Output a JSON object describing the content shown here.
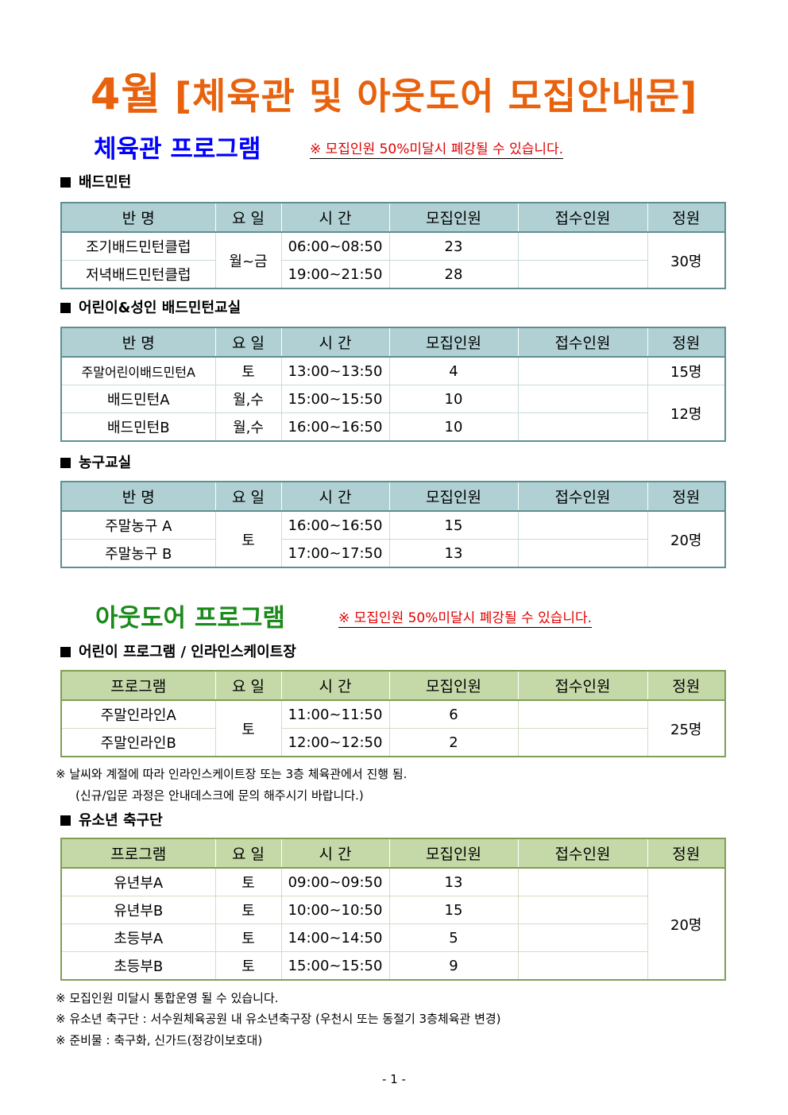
{
  "title": {
    "month": "4월",
    "rest": "[체육관 및 아웃도어 모집안내문]"
  },
  "colors": {
    "title": "#e8620e",
    "gym_heading": "#0000ff",
    "outdoor_heading": "#1a8a1a",
    "notice": "#e00000",
    "gym_table_header": "#b0d0d3",
    "outdoor_table_header": "#c5d9a8"
  },
  "gym": {
    "heading": "체육관 프로그램",
    "notice": "※ 모집인원 50%미달시 폐강될 수 있습니다.",
    "sections": [
      {
        "title": "배드민턴",
        "headers": [
          "반 명",
          "요 일",
          "시 간",
          "모집인원",
          "접수인원",
          "정원"
        ],
        "rows": [
          [
            "조기배드민턴클럽",
            "월~금",
            "06:00~08:50",
            "23",
            "",
            "30명"
          ],
          [
            "저녁배드민턴클럽",
            "",
            "19:00~21:50",
            "28",
            "",
            ""
          ]
        ]
      },
      {
        "title": "어린이&성인 배드민턴교실",
        "headers": [
          "반 명",
          "요 일",
          "시 간",
          "모집인원",
          "접수인원",
          "정원"
        ],
        "rows": [
          [
            "주말어린이배드민턴A",
            "토",
            "13:00~13:50",
            "4",
            "",
            "15명"
          ],
          [
            "배드민턴A",
            "월,수",
            "15:00~15:50",
            "10",
            "",
            "12명"
          ],
          [
            "배드민턴B",
            "월,수",
            "16:00~16:50",
            "10",
            "",
            ""
          ]
        ]
      },
      {
        "title": "농구교실",
        "headers": [
          "반 명",
          "요 일",
          "시 간",
          "모집인원",
          "접수인원",
          "정원"
        ],
        "rows": [
          [
            "주말농구 A",
            "토",
            "16:00~16:50",
            "15",
            "",
            "20명"
          ],
          [
            "주말농구 B",
            "",
            "17:00~17:50",
            "13",
            "",
            ""
          ]
        ]
      }
    ]
  },
  "outdoor": {
    "heading": "아웃도어 프로그램",
    "notice": "※ 모집인원 50%미달시 폐강될 수 있습니다.",
    "sections": [
      {
        "title": "어린이 프로그램 / 인라인스케이트장",
        "headers": [
          "프로그램",
          "요 일",
          "시 간",
          "모집인원",
          "접수인원",
          "정원"
        ],
        "rows": [
          [
            "주말인라인A",
            "토",
            "11:00~11:50",
            "6",
            "",
            "25명"
          ],
          [
            "주말인라인B",
            "",
            "12:00~12:50",
            "2",
            "",
            ""
          ]
        ]
      },
      {
        "title": "유소년 축구단",
        "headers": [
          "프로그램",
          "요 일",
          "시 간",
          "모집인원",
          "접수인원",
          "정원"
        ],
        "rows": [
          [
            "유년부A",
            "토",
            "09:00~09:50",
            "13",
            "",
            "20명"
          ],
          [
            "유년부B",
            "토",
            "10:00~10:50",
            "15",
            "",
            ""
          ],
          [
            "초등부A",
            "토",
            "14:00~14:50",
            "5",
            "",
            ""
          ],
          [
            "초등부B",
            "토",
            "15:00~15:50",
            "9",
            "",
            ""
          ]
        ]
      }
    ],
    "inline_notes": [
      "※ 날씨와 계절에 따라 인라인스케이트장 또는 3층 체육관에서 진행 됨.",
      "(신규/입문 과정은 안내데스크에 문의 해주시기 바랍니다.)"
    ],
    "soccer_notes": [
      "※ 모집인원 미달시 통합운영 될 수 있습니다.",
      "※ 유소년 축구단 : 서수원체육공원 내 유소년축구장 (우천시 또는 동절기 3층체육관 변경)",
      "※ 준비물 : 축구화, 신가드(정강이보호대)"
    ]
  },
  "page_number": "- 1 -"
}
